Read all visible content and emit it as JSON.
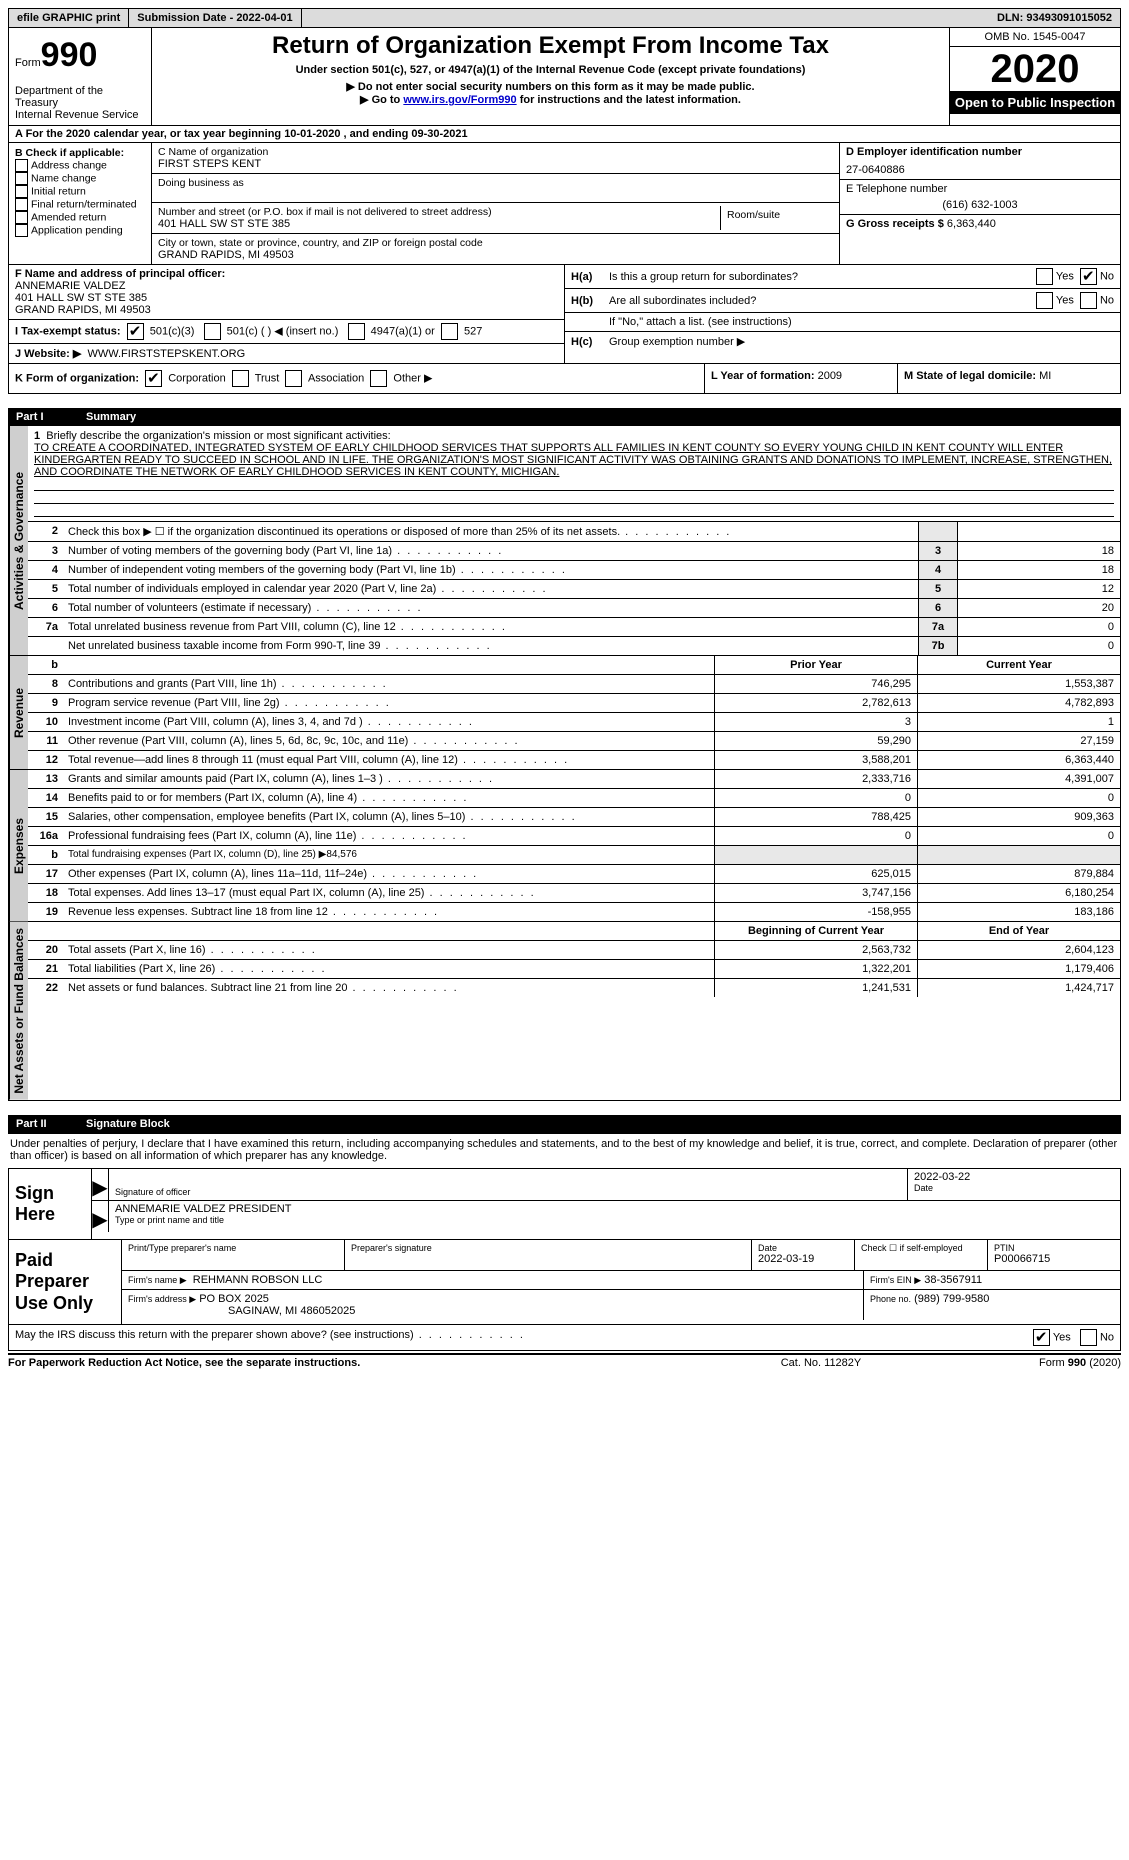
{
  "topbar": {
    "efile": "efile GRAPHIC print",
    "submission": "Submission Date - 2022-04-01",
    "dln": "DLN: 93493091015052"
  },
  "header": {
    "form_word": "Form",
    "form_no": "990",
    "dept": "Department of the Treasury",
    "irs": "Internal Revenue Service",
    "title": "Return of Organization Exempt From Income Tax",
    "subtitle": "Under section 501(c), 527, or 4947(a)(1) of the Internal Revenue Code (except private foundations)",
    "note1": "▶ Do not enter social security numbers on this form as it may be made public.",
    "note2_pre": "▶ Go to ",
    "note2_link": "www.irs.gov/Form990",
    "note2_post": " for instructions and the latest information.",
    "omb": "OMB No. 1545-0047",
    "year": "2020",
    "open": "Open to Public Inspection"
  },
  "row_a": "A For the 2020 calendar year, or tax year beginning 10-01-2020   , and ending 09-30-2021",
  "box_b": {
    "title": "B Check if applicable:",
    "items": [
      "Address change",
      "Name change",
      "Initial return",
      "Final return/terminated",
      "Amended return",
      "Application pending"
    ]
  },
  "box_c": {
    "label_name": "C Name of organization",
    "org": "FIRST STEPS KENT",
    "dba_label": "Doing business as",
    "addr_label": "Number and street (or P.O. box if mail is not delivered to street address)",
    "addr": "401 HALL SW ST STE 385",
    "room_label": "Room/suite",
    "city_label": "City or town, state or province, country, and ZIP or foreign postal code",
    "city": "GRAND RAPIDS, MI  49503"
  },
  "box_d": {
    "label": "D Employer identification number",
    "val": "27-0640886"
  },
  "box_e": {
    "label": "E Telephone number",
    "val": "(616) 632-1003"
  },
  "box_g": {
    "label": "G Gross receipts $",
    "val": "6,363,440"
  },
  "box_f": {
    "label": "F  Name and address of principal officer:",
    "name": "ANNEMARIE VALDEZ",
    "addr1": "401 HALL SW ST STE 385",
    "addr2": "GRAND RAPIDS, MI  49503"
  },
  "box_h": {
    "a_label": "Is this a group return for subordinates?",
    "b_label": "Are all subordinates included?",
    "b_note": "If \"No,\" attach a list. (see instructions)",
    "c_label": "Group exemption number ▶"
  },
  "tax_exempt": {
    "label": "I   Tax-exempt status:",
    "opts": [
      "501(c)(3)",
      "501(c) (   ) ◀ (insert no.)",
      "4947(a)(1) or",
      "527"
    ]
  },
  "box_j": {
    "label": "J  Website: ▶",
    "val": "WWW.FIRSTSTEPSKENT.ORG"
  },
  "box_k": {
    "label": "K Form of organization:",
    "opts": [
      "Corporation",
      "Trust",
      "Association",
      "Other ▶"
    ]
  },
  "box_l": {
    "label": "L Year of formation:",
    "val": "2009"
  },
  "box_m": {
    "label": "M State of legal domicile:",
    "val": "MI"
  },
  "part1": {
    "title": "Summary"
  },
  "vtabs": {
    "ag": "Activities & Governance",
    "rev": "Revenue",
    "exp": "Expenses",
    "na": "Net Assets or Fund Balances"
  },
  "mission": {
    "intro": "Briefly describe the organization's mission or most significant activities:",
    "text": "TO CREATE A COORDINATED, INTEGRATED SYSTEM OF EARLY CHILDHOOD SERVICES THAT SUPPORTS ALL FAMILIES IN KENT COUNTY SO EVERY YOUNG CHILD IN KENT COUNTY WILL ENTER KINDERGARTEN READY TO SUCCEED IN SCHOOL AND IN LIFE. THE ORGANIZATION'S MOST SIGNIFICANT ACTIVITY WAS OBTAINING GRANTS AND DONATIONS TO IMPLEMENT, INCREASE, STRENGTHEN, AND COORDINATE THE NETWORK OF EARLY CHILDHOOD SERVICES IN KENT COUNTY, MICHIGAN."
  },
  "ag_lines": [
    {
      "n": "2",
      "d": "Check this box ▶ ☐  if the organization discontinued its operations or disposed of more than 25% of its net assets.",
      "k": "",
      "v": ""
    },
    {
      "n": "3",
      "d": "Number of voting members of the governing body (Part VI, line 1a)",
      "k": "3",
      "v": "18"
    },
    {
      "n": "4",
      "d": "Number of independent voting members of the governing body (Part VI, line 1b)",
      "k": "4",
      "v": "18"
    },
    {
      "n": "5",
      "d": "Total number of individuals employed in calendar year 2020 (Part V, line 2a)",
      "k": "5",
      "v": "12"
    },
    {
      "n": "6",
      "d": "Total number of volunteers (estimate if necessary)",
      "k": "6",
      "v": "20"
    },
    {
      "n": "7a",
      "d": "Total unrelated business revenue from Part VIII, column (C), line 12",
      "k": "7a",
      "v": "0"
    },
    {
      "n": "",
      "d": "Net unrelated business taxable income from Form 990-T, line 39",
      "k": "7b",
      "v": "0"
    }
  ],
  "fin_header": {
    "n": "b",
    "prior": "Prior Year",
    "curr": "Current Year"
  },
  "rev_lines": [
    {
      "n": "8",
      "d": "Contributions and grants (Part VIII, line 1h)",
      "p": "746,295",
      "c": "1,553,387"
    },
    {
      "n": "9",
      "d": "Program service revenue (Part VIII, line 2g)",
      "p": "2,782,613",
      "c": "4,782,893"
    },
    {
      "n": "10",
      "d": "Investment income (Part VIII, column (A), lines 3, 4, and 7d )",
      "p": "3",
      "c": "1"
    },
    {
      "n": "11",
      "d": "Other revenue (Part VIII, column (A), lines 5, 6d, 8c, 9c, 10c, and 11e)",
      "p": "59,290",
      "c": "27,159"
    },
    {
      "n": "12",
      "d": "Total revenue—add lines 8 through 11 (must equal Part VIII, column (A), line 12)",
      "p": "3,588,201",
      "c": "6,363,440"
    }
  ],
  "exp_lines": [
    {
      "n": "13",
      "d": "Grants and similar amounts paid (Part IX, column (A), lines 1–3 )",
      "p": "2,333,716",
      "c": "4,391,007"
    },
    {
      "n": "14",
      "d": "Benefits paid to or for members (Part IX, column (A), line 4)",
      "p": "0",
      "c": "0"
    },
    {
      "n": "15",
      "d": "Salaries, other compensation, employee benefits (Part IX, column (A), lines 5–10)",
      "p": "788,425",
      "c": "909,363"
    },
    {
      "n": "16a",
      "d": "Professional fundraising fees (Part IX, column (A), line 11e)",
      "p": "0",
      "c": "0"
    },
    {
      "n": "b",
      "d": "Total fundraising expenses (Part IX, column (D), line 25) ▶84,576",
      "p": "",
      "c": "",
      "nobox": true
    },
    {
      "n": "17",
      "d": "Other expenses (Part IX, column (A), lines 11a–11d, 11f–24e)",
      "p": "625,015",
      "c": "879,884"
    },
    {
      "n": "18",
      "d": "Total expenses. Add lines 13–17 (must equal Part IX, column (A), line 25)",
      "p": "3,747,156",
      "c": "6,180,254"
    },
    {
      "n": "19",
      "d": "Revenue less expenses. Subtract line 18 from line 12",
      "p": "-158,955",
      "c": "183,186"
    }
  ],
  "na_header": {
    "prior": "Beginning of Current Year",
    "curr": "End of Year"
  },
  "na_lines": [
    {
      "n": "20",
      "d": "Total assets (Part X, line 16)",
      "p": "2,563,732",
      "c": "2,604,123"
    },
    {
      "n": "21",
      "d": "Total liabilities (Part X, line 26)",
      "p": "1,322,201",
      "c": "1,179,406"
    },
    {
      "n": "22",
      "d": "Net assets or fund balances. Subtract line 21 from line 20",
      "p": "1,241,531",
      "c": "1,424,717"
    }
  ],
  "part2": {
    "title": "Signature Block"
  },
  "sig": {
    "penalties": "Under penalties of perjury, I declare that I have examined this return, including accompanying schedules and statements, and to the best of my knowledge and belief, it is true, correct, and complete. Declaration of preparer (other than officer) is based on all information of which preparer has any knowledge.",
    "here": "Sign Here",
    "sig_label": "Signature of officer",
    "date": "2022-03-22",
    "date_label": "Date",
    "name": "ANNEMARIE VALDEZ  PRESIDENT",
    "name_label": "Type or print name and title"
  },
  "prep": {
    "title": "Paid Preparer Use Only",
    "h_name": "Print/Type preparer's name",
    "h_sig": "Preparer's signature",
    "h_date": "Date",
    "date": "2022-03-19",
    "self": "Check ☐ if self-employed",
    "ptin_label": "PTIN",
    "ptin": "P00066715",
    "firm_label": "Firm's name    ▶",
    "firm": "REHMANN ROBSON LLC",
    "ein_label": "Firm's EIN ▶",
    "ein": "38-3567911",
    "addr_label": "Firm's address ▶",
    "addr1": "PO BOX 2025",
    "addr2": "SAGINAW, MI  486052025",
    "phone_label": "Phone no.",
    "phone": "(989) 799-9580"
  },
  "discuss": "May the IRS discuss this return with the preparer shown above? (see instructions)",
  "footer": {
    "l": "For Paperwork Reduction Act Notice, see the separate instructions.",
    "c": "Cat. No. 11282Y",
    "r": "Form 990 (2020)"
  }
}
